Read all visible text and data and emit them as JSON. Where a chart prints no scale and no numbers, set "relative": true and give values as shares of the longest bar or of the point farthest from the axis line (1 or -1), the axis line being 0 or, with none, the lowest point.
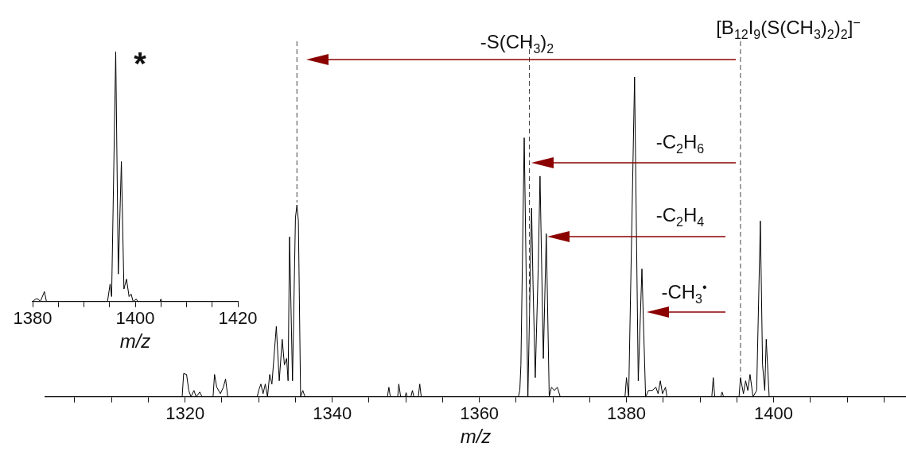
{
  "chart_data": [
    {
      "type": "line",
      "xlabel": "m/z",
      "relative": true,
      "xlim": [
        1301,
        1418
      ],
      "xticks": [
        {
          "value": 1305,
          "label": null
        },
        {
          "value": 1310,
          "label": null
        },
        {
          "value": 1315,
          "label": null
        },
        1320,
        {
          "value": 1325,
          "label": null
        },
        {
          "value": 1330,
          "label": null
        },
        {
          "value": 1335,
          "label": null
        },
        1340,
        {
          "value": 1345,
          "label": null
        },
        {
          "value": 1350,
          "label": null
        },
        {
          "value": 1355,
          "label": null
        },
        1360,
        {
          "value": 1365,
          "label": null
        },
        {
          "value": 1370,
          "label": null
        },
        {
          "value": 1375,
          "label": null
        },
        1380,
        {
          "value": 1385,
          "label": null
        },
        {
          "value": 1390,
          "label": null
        },
        {
          "value": 1395,
          "label": null
        },
        1400,
        {
          "value": 1405,
          "label": null
        },
        {
          "value": 1410,
          "label": null
        },
        {
          "value": 1415,
          "label": null
        }
      ],
      "x": [
        1301,
        1319.6,
        1319.8,
        1320.2,
        1320.5,
        1320.8,
        1321.2,
        1321.5,
        1322,
        1322.3,
        1323.8,
        1324,
        1324.3,
        1324.8,
        1325.2,
        1325.5,
        1325.8,
        1329.8,
        1330,
        1330.3,
        1330.6,
        1330.9,
        1331.2,
        1331.5,
        1331.8,
        1332.4,
        1332.8,
        1333.2,
        1333.5,
        1333.8,
        1334,
        1334.2,
        1334.6,
        1335,
        1335.2,
        1335.4,
        1335.7,
        1336,
        1336.3,
        1347.5,
        1347.7,
        1347.9,
        1348.9,
        1349.05,
        1349.3,
        1349.9,
        1350.05,
        1350.2,
        1350.7,
        1350.9,
        1351.1,
        1351.7,
        1351.9,
        1352.1,
        1365.3,
        1365.5,
        1365.65,
        1366.1,
        1366.6,
        1367.1,
        1367.3,
        1367.6,
        1368,
        1368.25,
        1368.7,
        1369.1,
        1369.5,
        1369.8,
        1370.2,
        1370.6,
        1371,
        1379.8,
        1380,
        1380.3,
        1381.1,
        1381.6,
        1382.1,
        1382.6,
        1383,
        1383.5,
        1384,
        1384.3,
        1384.6,
        1384.9,
        1385.3,
        1385.5,
        1391.6,
        1391.8,
        1392,
        1392.8,
        1393,
        1393.2,
        1395.3,
        1395.5,
        1395.9,
        1396.2,
        1396.5,
        1396.8,
        1397.2,
        1397.7,
        1398.2,
        1398.5,
        1398.8,
        1399,
        1399.4,
        1418
      ],
      "values": [
        0,
        0,
        0.073,
        0.07,
        0.02,
        0,
        0.02,
        0,
        0.015,
        0,
        0,
        0.07,
        0.03,
        0.01,
        0.03,
        0.056,
        0,
        0,
        0.02,
        0.04,
        0.01,
        0.04,
        0,
        0.07,
        0.04,
        0.22,
        0.05,
        0.18,
        0.1,
        0.12,
        0.05,
        0.5,
        0.05,
        0.56,
        0.6,
        0.55,
        0,
        0.02,
        0,
        0,
        0.03,
        0,
        0,
        0.04,
        0,
        0,
        0.013,
        0,
        0,
        0.02,
        0,
        0,
        0.04,
        0,
        0,
        0.02,
        0.1,
        0.81,
        0,
        0.59,
        0.35,
        0.06,
        0.4,
        0.69,
        0.12,
        0.51,
        0,
        0.03,
        0.02,
        0.03,
        0,
        0,
        0.06,
        0,
        1,
        0.05,
        0.4,
        0,
        0.02,
        0.02,
        0.03,
        0.01,
        0.05,
        0.01,
        0.03,
        0,
        0,
        0.06,
        0,
        0,
        0.015,
        0,
        0,
        0.06,
        0.01,
        0.05,
        0.02,
        0.07,
        0,
        0.02,
        0.55,
        0.1,
        0.02,
        0.18,
        0,
        0
      ],
      "ref_lines": [
        {
          "axis": "x",
          "value": 1395.5,
          "label": "[B$_{12}$I$_{9}$(S(CH$_{3}$)$_{2}$)$_{2}$]$^{−}$",
          "line_style": "dashed"
        },
        {
          "axis": "x",
          "value": 1335.2,
          "line_style": "dashed"
        },
        {
          "axis": "x",
          "value": 1366.8,
          "line_style": "dashed"
        }
      ],
      "annotations": [
        "-S(CH$_{3}$)$_{2}$",
        "-C$_{2}$H$_{6}$",
        "-C$_{2}$H$_{4}$",
        "-CH$_{3}$$^{•}$"
      ]
    },
    {
      "type": "line",
      "xlabel": "m/z",
      "relative": true,
      "xlim": [
        1380,
        1420
      ],
      "xticks": [
        1380,
        {
          "value": 1385,
          "label": null
        },
        {
          "value": 1390,
          "label": null
        },
        {
          "value": 1395,
          "label": null
        },
        1400,
        {
          "value": 1405,
          "label": null
        },
        {
          "value": 1410,
          "label": null
        },
        {
          "value": 1415,
          "label": null
        },
        1420
      ],
      "x": [
        1380,
        1380.6,
        1381.1,
        1381.5,
        1382.3,
        1382.7,
        1394.6,
        1395.1,
        1395.4,
        1396.2,
        1396.7,
        1397.3,
        1397.8,
        1398.3,
        1398.8,
        1399.2,
        1399.6,
        1400.2,
        1400.5,
        1404.8,
        1405,
        1405.2,
        1420
      ],
      "values": [
        0,
        0.01,
        0.01,
        0,
        0.04,
        0,
        0,
        0.07,
        0.02,
        1,
        0.11,
        0.56,
        0.05,
        0.09,
        0.02,
        0.03,
        0,
        0.01,
        0,
        0,
        0.01,
        0,
        0
      ],
      "annotations": [
        "*"
      ]
    }
  ]
}
